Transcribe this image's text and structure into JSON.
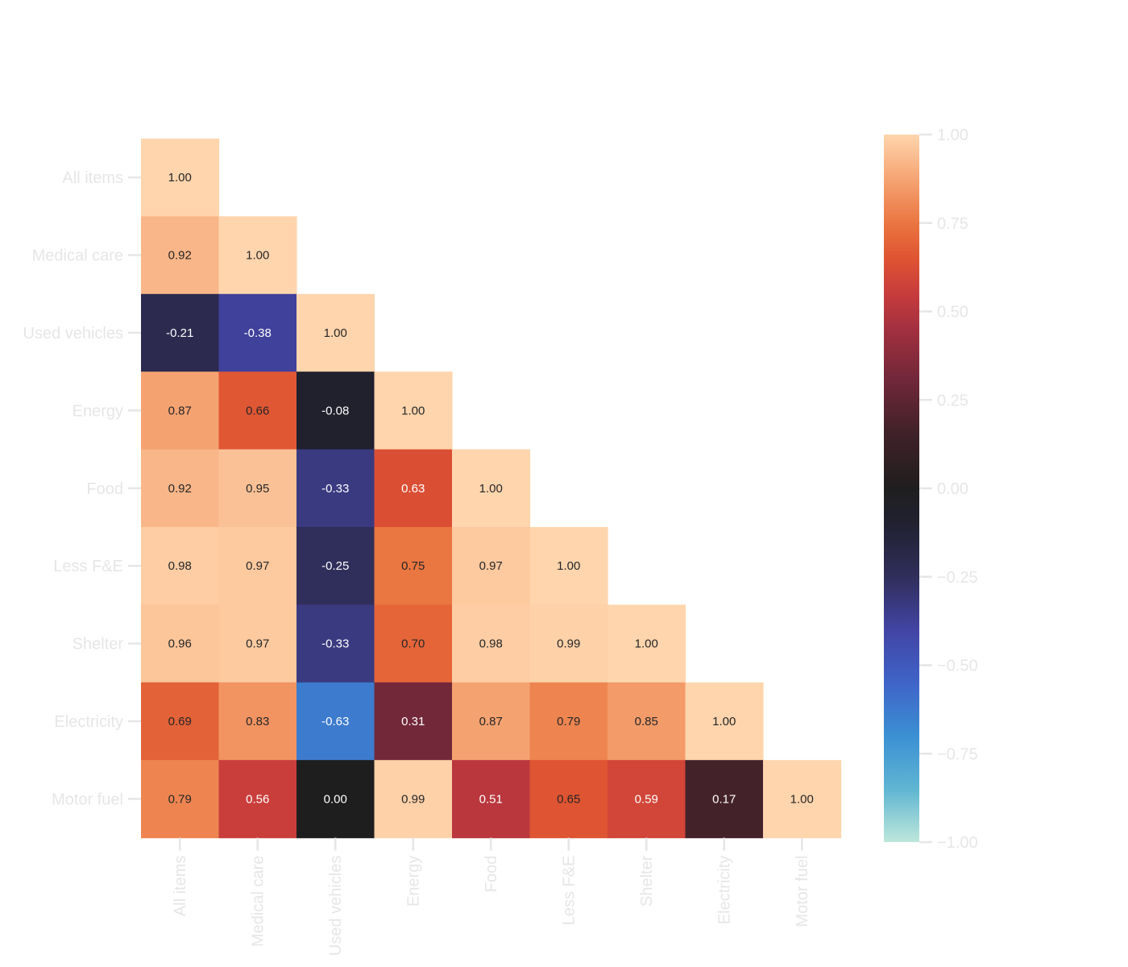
{
  "chart_data": {
    "type": "heatmap",
    "title": "",
    "xlabel": "",
    "ylabel": "",
    "labels": [
      "All items",
      "Medical care",
      "Used vehicles",
      "Energy",
      "Food",
      "Less F&E",
      "Shelter",
      "Electricity",
      "Motor fuel"
    ],
    "values": [
      [
        1.0
      ],
      [
        0.92,
        1.0
      ],
      [
        -0.21,
        -0.38,
        1.0
      ],
      [
        0.87,
        0.66,
        -0.08,
        1.0
      ],
      [
        0.92,
        0.95,
        -0.33,
        0.63,
        1.0
      ],
      [
        0.98,
        0.97,
        -0.25,
        0.75,
        0.97,
        1.0
      ],
      [
        0.96,
        0.97,
        -0.33,
        0.7,
        0.98,
        0.99,
        1.0
      ],
      [
        0.69,
        0.83,
        -0.63,
        0.31,
        0.87,
        0.79,
        0.85,
        1.0
      ],
      [
        0.79,
        0.56,
        -0.0,
        0.99,
        0.51,
        0.65,
        0.59,
        0.17,
        1.0
      ]
    ],
    "value_format": "2 decimals",
    "mask": "upper-triangle",
    "color_scale": {
      "name": "icefire",
      "vmin": -1.0,
      "vmax": 1.0,
      "stops": [
        {
          "v": -1.0,
          "color": "#bde7db"
        },
        {
          "v": -0.85,
          "color": "#5fb6d2"
        },
        {
          "v": -0.7,
          "color": "#3b90d3"
        },
        {
          "v": -0.55,
          "color": "#3f64c8"
        },
        {
          "v": -0.4,
          "color": "#4244a4"
        },
        {
          "v": -0.25,
          "color": "#302e5a"
        },
        {
          "v": -0.1,
          "color": "#212131"
        },
        {
          "v": 0.0,
          "color": "#1f1e1e"
        },
        {
          "v": 0.15,
          "color": "#3e2128"
        },
        {
          "v": 0.3,
          "color": "#6e2739"
        },
        {
          "v": 0.45,
          "color": "#a3303f"
        },
        {
          "v": 0.55,
          "color": "#c73c3c"
        },
        {
          "v": 0.65,
          "color": "#df5432"
        },
        {
          "v": 0.75,
          "color": "#ea7641"
        },
        {
          "v": 0.88,
          "color": "#f6a675"
        },
        {
          "v": 1.0,
          "color": "#ffd5ad"
        }
      ]
    },
    "colorbar": {
      "position": "right",
      "ticks": [
        1.0,
        0.75,
        0.5,
        0.25,
        0.0,
        -0.25,
        -0.5,
        -0.75,
        -1.0
      ],
      "tick_labels": [
        "1.00",
        "0.75",
        "0.50",
        "0.25",
        "0.00",
        "−0.25",
        "−0.50",
        "−0.75",
        "−1.00"
      ]
    }
  }
}
